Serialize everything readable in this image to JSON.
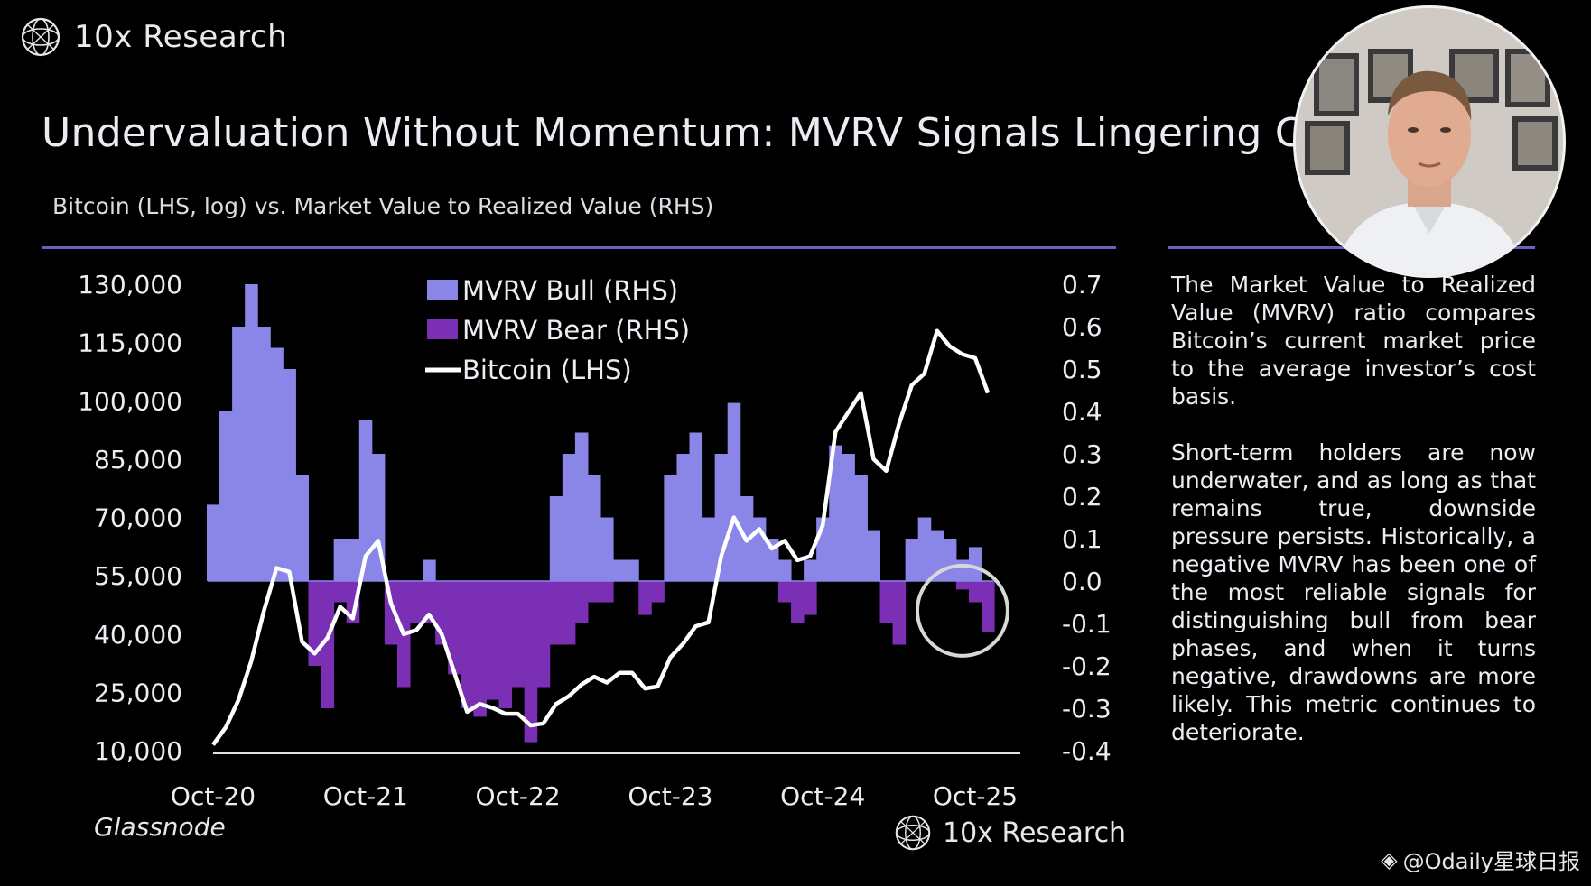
{
  "brand": {
    "name": "10x Research"
  },
  "title": "Undervaluation Without Momentum: MVRV Signals Lingering Co",
  "subtitle": "Bitcoin (LHS, log) vs. Market Value to Realized Value (RHS)",
  "description": [
    "The Market Value to Realized Value (MVRV) ratio compares Bitcoin’s current market price to the average investor’s cost basis.",
    "Short-term holders are now underwater, and as long as that remains true, downside pressure persists. Historically, a negative MVRV has been one of the most reliable signals for distinguishing bull from bear phases, and when it turns negative, drawdowns are more likely. This metric continues to deteriorate."
  ],
  "source": "Glassnode",
  "watermark": "@Odaily星球日报",
  "colors": {
    "bull": "#8a86e8",
    "bear": "#7b2fb4",
    "bitcoin": "#ffffff",
    "rule": "#6b5fc0",
    "highlight": "#d8d8d8"
  },
  "chart_data": {
    "type": "area",
    "legend": [
      "MVRV Bull (RHS)",
      "MVRV Bear (RHS)",
      "Bitcoin (LHS)"
    ],
    "legend_position": "top-left",
    "x_ticks": [
      "Oct-20",
      "Oct-21",
      "Oct-22",
      "Oct-23",
      "Oct-24",
      "Oct-25"
    ],
    "x_range": [
      "2020-10",
      "2025-11"
    ],
    "y_left_ticks": [
      "130,000",
      "115,000",
      "100,000",
      "85,000",
      "70,000",
      "55,000",
      "40,000",
      "25,000",
      "10,000"
    ],
    "y_left_range": [
      10000,
      130000
    ],
    "y_right_ticks": [
      "0.7",
      "0.6",
      "0.5",
      "0.4",
      "0.3",
      "0.2",
      "0.1",
      "0.0",
      "-0.1",
      "-0.2",
      "-0.3",
      "-0.4"
    ],
    "y_right_range": [
      -0.4,
      0.7
    ],
    "grid": false,
    "series": [
      {
        "name": "MVRV Bull (RHS)",
        "x": [
          "2020-10",
          "2020-11",
          "2020-12",
          "2021-01",
          "2021-02",
          "2021-03",
          "2021-04",
          "2021-05",
          "2021-06",
          "2021-07",
          "2021-08",
          "2021-09",
          "2021-10",
          "2021-11",
          "2021-12",
          "2022-01",
          "2022-02",
          "2022-03",
          "2022-04",
          "2022-05",
          "2022-06",
          "2022-07",
          "2022-08",
          "2022-09",
          "2022-10",
          "2022-11",
          "2022-12",
          "2023-01",
          "2023-02",
          "2023-03",
          "2023-04",
          "2023-05",
          "2023-06",
          "2023-07",
          "2023-08",
          "2023-09",
          "2023-10",
          "2023-11",
          "2023-12",
          "2024-01",
          "2024-02",
          "2024-03",
          "2024-04",
          "2024-05",
          "2024-06",
          "2024-07",
          "2024-08",
          "2024-09",
          "2024-10",
          "2024-11",
          "2024-12",
          "2025-01",
          "2025-02",
          "2025-03",
          "2025-04",
          "2025-05",
          "2025-06",
          "2025-07",
          "2025-08",
          "2025-09",
          "2025-10",
          "2025-11"
        ],
        "values": [
          0.18,
          0.4,
          0.6,
          0.7,
          0.6,
          0.55,
          0.5,
          0.25,
          0,
          0,
          0.1,
          0.1,
          0.38,
          0.3,
          0,
          0,
          0,
          0.05,
          0,
          0,
          0,
          0,
          0,
          0,
          0,
          0,
          0,
          0.2,
          0.3,
          0.35,
          0.25,
          0.15,
          0.05,
          0.05,
          0,
          0,
          0.25,
          0.3,
          0.35,
          0.15,
          0.3,
          0.42,
          0.2,
          0.15,
          0.1,
          0.05,
          0,
          0.05,
          0.15,
          0.32,
          0.3,
          0.25,
          0.12,
          0,
          0,
          0.1,
          0.15,
          0.12,
          0.1,
          0.05,
          0.08,
          0
        ]
      },
      {
        "name": "MVRV Bear (RHS)",
        "x": [
          "2020-10",
          "2020-11",
          "2020-12",
          "2021-01",
          "2021-02",
          "2021-03",
          "2021-04",
          "2021-05",
          "2021-06",
          "2021-07",
          "2021-08",
          "2021-09",
          "2021-10",
          "2021-11",
          "2021-12",
          "2022-01",
          "2022-02",
          "2022-03",
          "2022-04",
          "2022-05",
          "2022-06",
          "2022-07",
          "2022-08",
          "2022-09",
          "2022-10",
          "2022-11",
          "2022-12",
          "2023-01",
          "2023-02",
          "2023-03",
          "2023-04",
          "2023-05",
          "2023-06",
          "2023-07",
          "2023-08",
          "2023-09",
          "2023-10",
          "2023-11",
          "2023-12",
          "2024-01",
          "2024-02",
          "2024-03",
          "2024-04",
          "2024-05",
          "2024-06",
          "2024-07",
          "2024-08",
          "2024-09",
          "2024-10",
          "2024-11",
          "2024-12",
          "2025-01",
          "2025-02",
          "2025-03",
          "2025-04",
          "2025-05",
          "2025-06",
          "2025-07",
          "2025-08",
          "2025-09",
          "2025-10",
          "2025-11"
        ],
        "values": [
          0,
          0,
          0,
          0,
          0,
          0,
          0,
          0,
          -0.2,
          -0.3,
          -0.05,
          -0.1,
          0,
          0,
          -0.15,
          -0.25,
          -0.1,
          -0.1,
          -0.15,
          -0.22,
          -0.3,
          -0.32,
          -0.28,
          -0.3,
          -0.25,
          -0.38,
          -0.25,
          -0.15,
          -0.15,
          -0.1,
          -0.05,
          -0.05,
          0,
          0,
          -0.08,
          -0.05,
          0,
          0,
          0,
          0,
          0,
          0,
          0,
          0,
          0,
          -0.05,
          -0.1,
          -0.08,
          0,
          0,
          0,
          0,
          0,
          -0.1,
          -0.15,
          0,
          0,
          0,
          0,
          -0.02,
          -0.05,
          -0.12
        ]
      },
      {
        "name": "Bitcoin (LHS)",
        "x": [
          "2020-10",
          "2020-11",
          "2020-12",
          "2021-01",
          "2021-02",
          "2021-03",
          "2021-04",
          "2021-05",
          "2021-06",
          "2021-07",
          "2021-08",
          "2021-09",
          "2021-10",
          "2021-11",
          "2021-12",
          "2022-01",
          "2022-02",
          "2022-03",
          "2022-04",
          "2022-05",
          "2022-06",
          "2022-07",
          "2022-08",
          "2022-09",
          "2022-10",
          "2022-11",
          "2022-12",
          "2023-01",
          "2023-02",
          "2023-03",
          "2023-04",
          "2023-05",
          "2023-06",
          "2023-07",
          "2023-08",
          "2023-09",
          "2023-10",
          "2023-11",
          "2023-12",
          "2024-01",
          "2024-02",
          "2024-03",
          "2024-04",
          "2024-05",
          "2024-06",
          "2024-07",
          "2024-08",
          "2024-09",
          "2024-10",
          "2024-11",
          "2024-12",
          "2025-01",
          "2025-02",
          "2025-03",
          "2025-04",
          "2025-05",
          "2025-06",
          "2025-07",
          "2025-08",
          "2025-09",
          "2025-10",
          "2025-11"
        ],
        "values": [
          11500,
          16000,
          23000,
          33000,
          46000,
          57000,
          56000,
          38000,
          35000,
          39000,
          47000,
          44000,
          60000,
          64000,
          48000,
          40000,
          41000,
          45000,
          40000,
          30000,
          20000,
          22000,
          21000,
          19500,
          19500,
          16500,
          17000,
          22000,
          24000,
          27000,
          29000,
          27500,
          30000,
          30000,
          26000,
          26500,
          34000,
          37500,
          42000,
          43000,
          60000,
          70000,
          64000,
          67000,
          62000,
          64000,
          59000,
          60000,
          68000,
          92000,
          97000,
          102000,
          85000,
          82000,
          94000,
          104000,
          107000,
          118000,
          114000,
          112000,
          111000,
          102000
        ]
      }
    ]
  }
}
